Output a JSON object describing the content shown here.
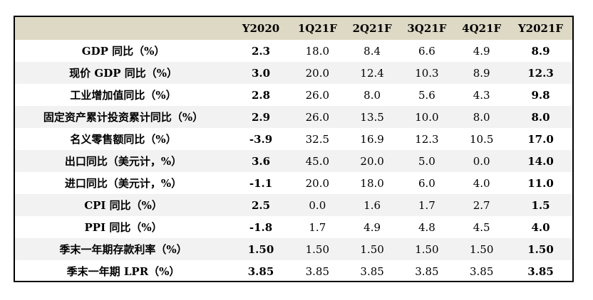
{
  "table": {
    "headers": [
      "",
      "Y2020",
      "1Q21F",
      "2Q21F",
      "3Q21F",
      "4Q21F",
      "Y2021F"
    ],
    "rows": [
      {
        "label": "GDP 同比（%）",
        "values": [
          "2.3",
          "18.0",
          "8.4",
          "6.6",
          "4.9",
          "8.9"
        ]
      },
      {
        "label": "现价 GDP 同比（%）",
        "values": [
          "3.0",
          "20.0",
          "12.4",
          "10.3",
          "8.9",
          "12.3"
        ]
      },
      {
        "label": "工业增加值同比（%）",
        "values": [
          "2.8",
          "26.0",
          "8.0",
          "5.6",
          "4.3",
          "9.8"
        ]
      },
      {
        "label": "固定资产累计投资累计同比（%）",
        "values": [
          "2.9",
          "26.0",
          "13.5",
          "10.0",
          "8.0",
          "8.0"
        ]
      },
      {
        "label": "名义零售额同比（%）",
        "values": [
          "-3.9",
          "32.5",
          "16.9",
          "12.3",
          "10.5",
          "17.0"
        ]
      },
      {
        "label": "出口同比（美元计，%）",
        "values": [
          "3.6",
          "45.0",
          "20.0",
          "5.0",
          "0.0",
          "14.0"
        ]
      },
      {
        "label": "进口同比（美元计，%）",
        "values": [
          "-1.1",
          "20.0",
          "18.0",
          "6.0",
          "4.0",
          "11.0"
        ]
      },
      {
        "label": "CPI 同比（%）",
        "values": [
          "2.5",
          "0.0",
          "1.6",
          "1.7",
          "2.7",
          "1.5"
        ]
      },
      {
        "label": "PPI 同比（%）",
        "values": [
          "-1.8",
          "1.7",
          "4.9",
          "4.8",
          "4.5",
          "4.0"
        ]
      },
      {
        "label": "季末一年期存款利率（%）",
        "values": [
          "1.50",
          "1.50",
          "1.50",
          "1.50",
          "1.50",
          "1.50"
        ]
      },
      {
        "label": "季末一年期 LPR（%）",
        "values": [
          "3.85",
          "3.85",
          "3.85",
          "3.85",
          "3.85",
          "3.85"
        ]
      }
    ]
  },
  "colors": {
    "header_bg": "#ddd9c4",
    "stripe_bg": "#f2f2f2",
    "border": "#000000"
  }
}
